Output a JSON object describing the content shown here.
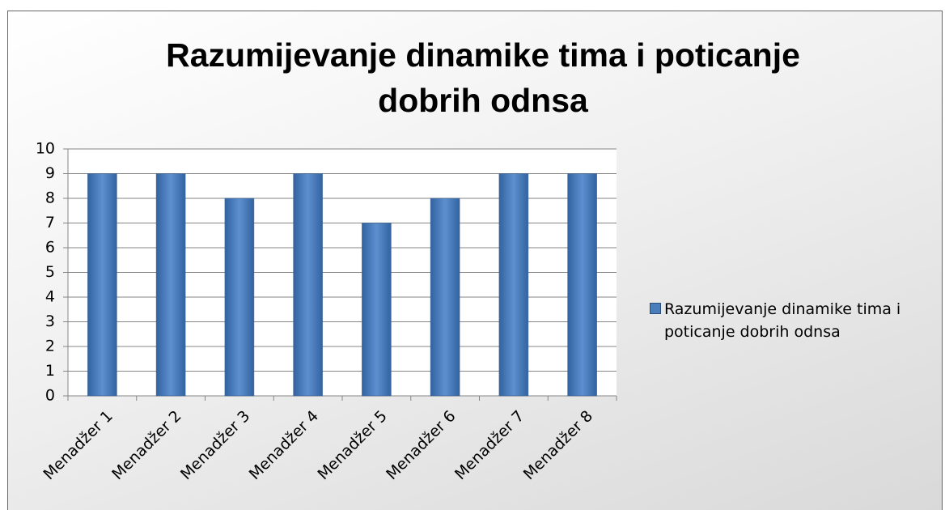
{
  "chart_data": {
    "type": "bar",
    "title": "Razumijevanje dinamike tima i poticanje dobrih odnsa",
    "categories": [
      "Menadžer 1",
      "Menadžer 2",
      "Menadžer 3",
      "Menadžer 4",
      "Menadžer 5",
      "Menadžer 6",
      "Menadžer 7",
      "Menadžer 8"
    ],
    "series": [
      {
        "name": "Razumijevanje dinamike tima i poticanje dobrih odnsa",
        "color": "#4a7ebb",
        "values": [
          9,
          9,
          8,
          9,
          7,
          8,
          9,
          9
        ]
      }
    ],
    "ylim": [
      0,
      10
    ],
    "yticks": [
      0,
      1,
      2,
      3,
      4,
      5,
      6,
      7,
      8,
      9,
      10
    ],
    "grid": true,
    "legend": "right"
  }
}
